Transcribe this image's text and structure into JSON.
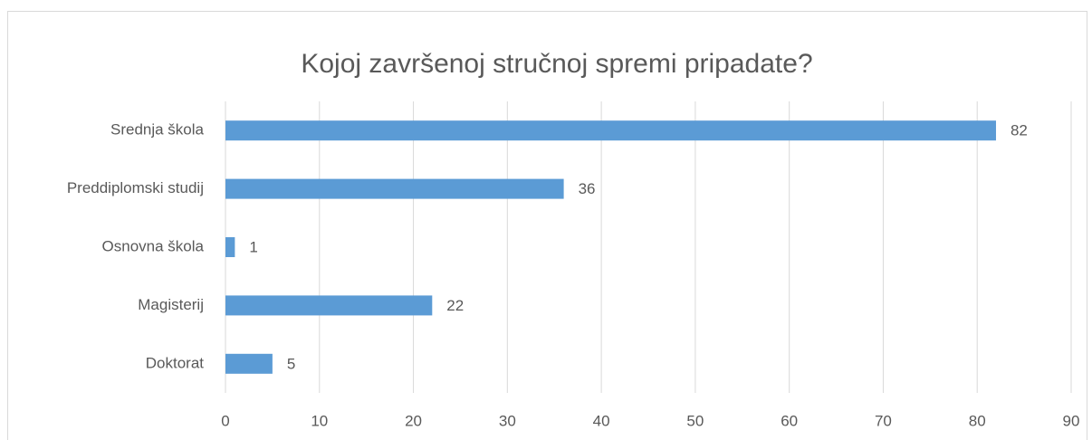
{
  "chart_data": {
    "type": "barh",
    "title": "Kojoj završenoj stručnoj spremi pripadate?",
    "categories": [
      "Srednja škola",
      "Preddiplomski studij",
      "Osnovna škola",
      "Magisterij",
      "Doktorat"
    ],
    "values": [
      82,
      36,
      1,
      22,
      5
    ],
    "color": "#5b9bd5",
    "xlim": [
      0,
      90
    ],
    "xticks": [
      0,
      10,
      20,
      30,
      40,
      50,
      60,
      70,
      80,
      90
    ],
    "grid": true
  }
}
